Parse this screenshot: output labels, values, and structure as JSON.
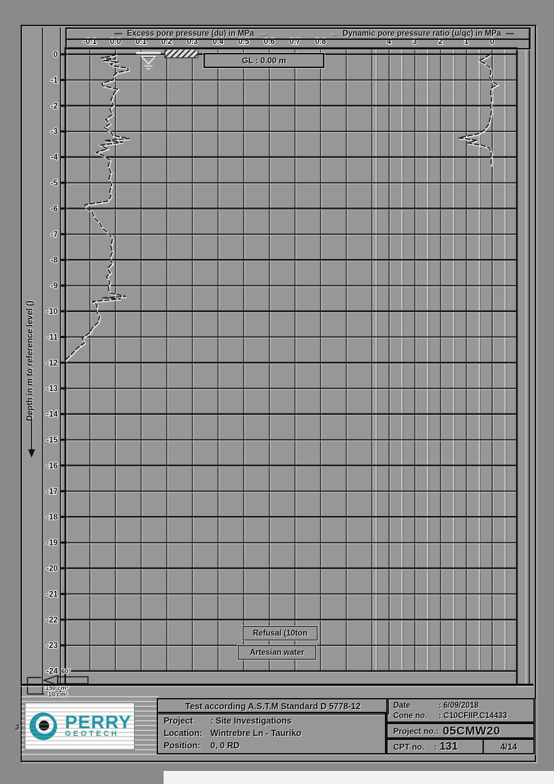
{
  "header": {
    "dash": "—",
    "arrow_right": "→",
    "arrow_left": "←"
  },
  "chart_data": {
    "type": "line",
    "left_axis": {
      "label": "Excess pore pressure (du) in MPa",
      "ticks": [
        "-0.1",
        "0.0",
        "0.1",
        "0.2",
        "0.3",
        "0.4",
        "0.5",
        "0.6",
        "0.7",
        "0.8"
      ],
      "min": -0.1,
      "max": 0.8
    },
    "right_axis": {
      "label": "Dynamic pore pressure ratio (u/qc) in MPa",
      "ticks": [
        "4",
        "3",
        "2",
        "1",
        "0"
      ],
      "min": 0,
      "max": 4,
      "reversed": true
    },
    "depth_axis": {
      "label": "Depth in m to reference level ()",
      "top": 0,
      "bottom": -24,
      "step": 1
    },
    "ground_level": {
      "label": "GL :  0.00 m",
      "value_m": 0.0
    },
    "annotations": {
      "refusal": "Refusal (10ton",
      "artesian": "Artesian water"
    },
    "series": [
      {
        "name": "Excess pore pressure (du)",
        "axis": "left",
        "points": [
          [
            0.005,
            0
          ],
          [
            -0.02,
            -0.08
          ],
          [
            -0.055,
            -0.14
          ],
          [
            0,
            -0.18
          ],
          [
            -0.045,
            -0.24
          ],
          [
            0.012,
            -0.3
          ],
          [
            -0.02,
            -0.38
          ],
          [
            -0.005,
            -0.46
          ],
          [
            0.048,
            -0.54
          ],
          [
            0.05,
            -0.62
          ],
          [
            0.005,
            -0.72
          ],
          [
            -0.01,
            -0.86
          ],
          [
            -0.008,
            -1.0
          ],
          [
            -0.052,
            -1.12
          ],
          [
            -0.05,
            -1.22
          ],
          [
            0.008,
            -1.36
          ],
          [
            -0.005,
            -1.5
          ],
          [
            -0.012,
            -1.66
          ],
          [
            -0.018,
            -1.8
          ],
          [
            -0.008,
            -1.96
          ],
          [
            -0.022,
            -2.14
          ],
          [
            -0.012,
            -2.34
          ],
          [
            -0.038,
            -2.54
          ],
          [
            -0.022,
            -2.7
          ],
          [
            -0.042,
            -2.86
          ],
          [
            -0.018,
            -3.02
          ],
          [
            -0.01,
            -3.16
          ],
          [
            0.055,
            -3.28
          ],
          [
            -0.042,
            -3.36
          ],
          [
            0.028,
            -3.42
          ],
          [
            -0.058,
            -3.54
          ],
          [
            -0.032,
            -3.68
          ],
          [
            -0.075,
            -3.82
          ],
          [
            -0.045,
            -3.96
          ],
          [
            -0.022,
            -4.12
          ],
          [
            -0.028,
            -4.36
          ],
          [
            -0.018,
            -4.6
          ],
          [
            -0.025,
            -4.84
          ],
          [
            -0.015,
            -5.08
          ],
          [
            -0.022,
            -5.34
          ],
          [
            -0.018,
            -5.54
          ],
          [
            -0.032,
            -5.72
          ],
          [
            -0.12,
            -5.86
          ],
          [
            -0.115,
            -5.98
          ],
          [
            -0.092,
            -6.12
          ],
          [
            -0.082,
            -6.36
          ],
          [
            -0.06,
            -6.6
          ],
          [
            -0.048,
            -6.8
          ],
          [
            -0.022,
            -7.02
          ],
          [
            -0.012,
            -7.22
          ],
          [
            -0.018,
            -7.46
          ],
          [
            -0.012,
            -7.7
          ],
          [
            -0.022,
            -7.94
          ],
          [
            -0.012,
            -8.14
          ],
          [
            -0.032,
            -8.34
          ],
          [
            -0.02,
            -8.5
          ],
          [
            -0.035,
            -8.66
          ],
          [
            -0.022,
            -8.86
          ],
          [
            -0.028,
            -9.1
          ],
          [
            -0.022,
            -9.3
          ],
          [
            0.04,
            -9.42
          ],
          [
            -0.05,
            -9.48
          ],
          [
            0.02,
            -9.52
          ],
          [
            -0.09,
            -9.62
          ],
          [
            -0.072,
            -9.76
          ],
          [
            -0.075,
            -10.0
          ],
          [
            -0.062,
            -10.2
          ],
          [
            -0.068,
            -10.44
          ],
          [
            -0.09,
            -10.64
          ],
          [
            -0.1,
            -10.84
          ],
          [
            -0.13,
            -11.04
          ],
          [
            -0.122,
            -11.24
          ],
          [
            -0.15,
            -11.44
          ],
          [
            -0.168,
            -11.64
          ],
          [
            -0.185,
            -11.8
          ],
          [
            -0.2,
            -11.95
          ]
        ]
      },
      {
        "name": "Dynamic pore pressure ratio (u/qc)",
        "axis": "right",
        "points": [
          [
            0.08,
            0
          ],
          [
            0.25,
            -0.12
          ],
          [
            0.5,
            -0.25
          ],
          [
            0.3,
            -0.35
          ],
          [
            0.1,
            -0.5
          ],
          [
            0.05,
            -0.7
          ],
          [
            0.1,
            -0.9
          ],
          [
            0.02,
            -1.05
          ],
          [
            -0.2,
            -1.18
          ],
          [
            0.02,
            -1.3
          ],
          [
            0.06,
            -1.5
          ],
          [
            0.02,
            -1.75
          ],
          [
            0.06,
            -2.0
          ],
          [
            0.03,
            -2.25
          ],
          [
            0.08,
            -2.5
          ],
          [
            0.15,
            -2.75
          ],
          [
            0.3,
            -2.95
          ],
          [
            0.55,
            -3.1
          ],
          [
            1.3,
            -3.25
          ],
          [
            0.6,
            -3.35
          ],
          [
            0.95,
            -3.45
          ],
          [
            0.35,
            -3.55
          ],
          [
            0.1,
            -3.65
          ],
          [
            0.04,
            -3.85
          ],
          [
            0.04,
            -4.35
          ]
        ]
      }
    ]
  },
  "cone_legend": {
    "angle": "60°",
    "sleeve": "150 cm²",
    "tip": "10 cm²"
  },
  "footer": {
    "standard": "Test according A.S.T.M Standard D 5778-12",
    "project_label": "Project",
    "project": ": Site Investigations",
    "location_label": "Location:",
    "location": "Wintrebre Ln - Tauriko",
    "position_label": "Position:",
    "position": "0, 0 RD",
    "date_label": "Date",
    "date": ": 6/09/2018",
    "cone_label": "Cone no.",
    "cone": ": C10CFIIP.C14433",
    "projectno_label": "Project no.:",
    "projectno": "05CMW20",
    "cpt_label": "CPT no.",
    "cpt_colon": ":",
    "cpt": "131",
    "page": "4/14",
    "logo": {
      "name": "PERRY",
      "sub": "GEOTECH"
    }
  },
  "page": {
    "mark": "3"
  }
}
